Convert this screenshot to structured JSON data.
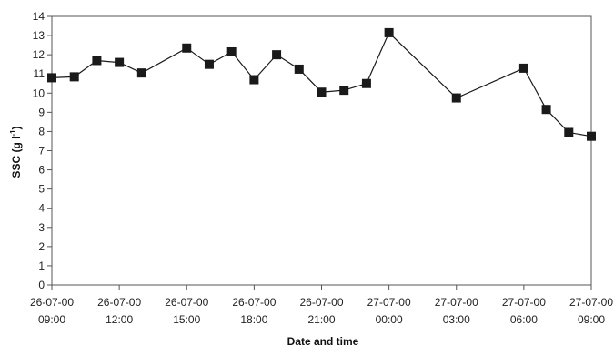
{
  "chart_data": {
    "type": "line",
    "title": "",
    "xlabel": "Date and time",
    "ylabel": "SSC (g l⁻¹)",
    "ylabel_main": "SSC (g l",
    "ylabel_sup": "-1",
    "ylabel_close": ")",
    "ylim": [
      0,
      14
    ],
    "yticks": [
      0,
      1,
      2,
      3,
      4,
      5,
      6,
      7,
      8,
      9,
      10,
      11,
      12,
      13,
      14
    ],
    "grid": false,
    "legend": "none",
    "xlim_hours": [
      0,
      24
    ],
    "xticks": [
      {
        "hour": 0,
        "date": "26-07-00",
        "time": "09:00"
      },
      {
        "hour": 3,
        "date": "26-07-00",
        "time": "12:00"
      },
      {
        "hour": 6,
        "date": "26-07-00",
        "time": "15:00"
      },
      {
        "hour": 9,
        "date": "26-07-00",
        "time": "18:00"
      },
      {
        "hour": 12,
        "date": "26-07-00",
        "time": "21:00"
      },
      {
        "hour": 15,
        "date": "27-07-00",
        "time": "00:00"
      },
      {
        "hour": 18,
        "date": "27-07-00",
        "time": "03:00"
      },
      {
        "hour": 21,
        "date": "27-07-00",
        "time": "06:00"
      },
      {
        "hour": 24,
        "date": "27-07-00",
        "time": "09:00"
      }
    ],
    "series": [
      {
        "color": "#1a1a1a",
        "marker": "square",
        "points": [
          {
            "hour": 0.0,
            "y": 10.8
          },
          {
            "hour": 1.0,
            "y": 10.85
          },
          {
            "hour": 2.0,
            "y": 11.7
          },
          {
            "hour": 3.0,
            "y": 11.6
          },
          {
            "hour": 4.0,
            "y": 11.05
          },
          {
            "hour": 6.0,
            "y": 12.35
          },
          {
            "hour": 7.0,
            "y": 11.5
          },
          {
            "hour": 8.0,
            "y": 12.15
          },
          {
            "hour": 9.0,
            "y": 10.7
          },
          {
            "hour": 10.0,
            "y": 12.0
          },
          {
            "hour": 11.0,
            "y": 11.25
          },
          {
            "hour": 12.0,
            "y": 10.05
          },
          {
            "hour": 13.0,
            "y": 10.15
          },
          {
            "hour": 14.0,
            "y": 10.5
          },
          {
            "hour": 15.0,
            "y": 13.15
          },
          {
            "hour": 18.0,
            "y": 9.75
          },
          {
            "hour": 21.0,
            "y": 11.3
          },
          {
            "hour": 22.0,
            "y": 9.15
          },
          {
            "hour": 23.0,
            "y": 7.95
          },
          {
            "hour": 24.0,
            "y": 7.75
          }
        ]
      }
    ]
  }
}
